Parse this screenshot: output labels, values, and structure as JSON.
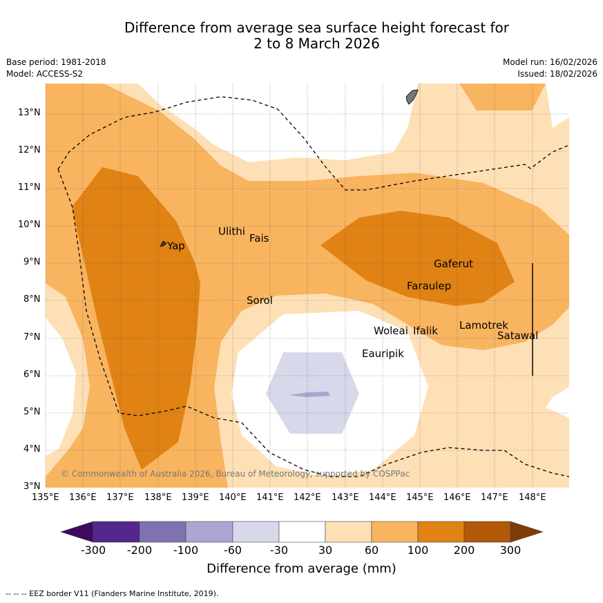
{
  "header": {
    "title_line1": "Difference from average sea surface height forecast for",
    "title_line2": "2 to 8 March 2026",
    "base_period": "Base period: 1981-2018",
    "model": "Model: ACCESS-S2",
    "model_run": "Model run: 16/02/2026",
    "issued": "Issued: 18/02/2026"
  },
  "map": {
    "lat_labels": [
      "13°N",
      "12°N",
      "11°N",
      "10°N",
      "9°N",
      "8°N",
      "7°N",
      "6°N",
      "5°N",
      "4°N",
      "3°N"
    ],
    "lon_labels": [
      "135°E",
      "136°E",
      "137°E",
      "138°E",
      "139°E",
      "140°E",
      "141°E",
      "142°E",
      "143°E",
      "144°E",
      "145°E",
      "146°E",
      "147°E",
      "148°E"
    ],
    "places": [
      "Ulithi",
      "Fais",
      "Yap",
      "Sorol",
      "Gaferut",
      "Faraulep",
      "Woleai",
      "Ifalik",
      "Lamotrek",
      "Satawal",
      "Eauripik"
    ],
    "copyright": "© Commonwealth of Australia 2026, Bureau of Meteorology, supported by COSPPac"
  },
  "colorbar": {
    "ticks": [
      "-300",
      "-200",
      "-100",
      "-60",
      "-30",
      "30",
      "60",
      "100",
      "200",
      "300"
    ],
    "label": "Difference from average (mm)",
    "colors": [
      "#3f0a5e",
      "#54278f",
      "#8072b0",
      "#aba5d1",
      "#d8d8eb",
      "#ffffff",
      "#fee0b6",
      "#f9b460",
      "#e08214",
      "#b35806",
      "#7f3b08"
    ]
  },
  "footer": {
    "eez_note": "--  --  -- EEZ border V11 (Flanders Marine Institute, 2019)."
  }
}
